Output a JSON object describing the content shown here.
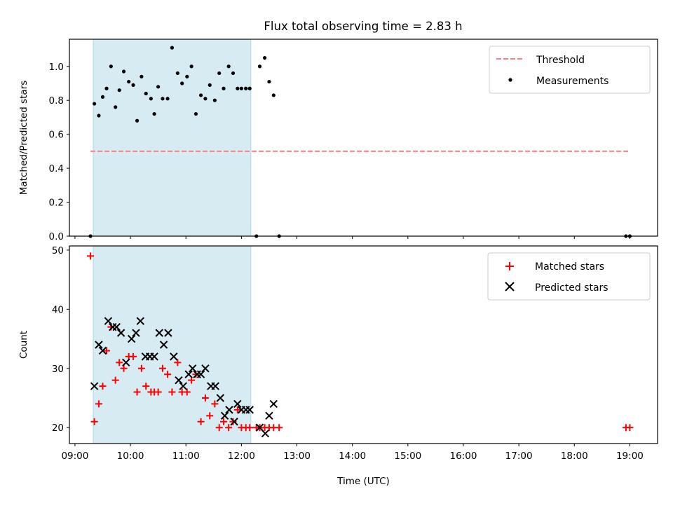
{
  "title": "Flux total observing time = 2.83 h",
  "colors": {
    "shade": "#add8e6",
    "threshold": "#ff7f7f",
    "measurement": "#000000",
    "matched": "#ff0000",
    "predicted": "#000000"
  },
  "chart_data": [
    {
      "type": "scatter",
      "name": "ratio",
      "ylabel": "Matched/Predicted stars",
      "ylim": [
        0,
        1.16
      ],
      "yticks": [
        0.0,
        0.2,
        0.4,
        0.6,
        0.8,
        1.0
      ],
      "ytick_labels": [
        "0.0",
        "0.2",
        "0.4",
        "0.6",
        "0.8",
        "1.0"
      ],
      "xlim": [
        8.9,
        19.5
      ],
      "shaded_interval": [
        9.33,
        12.17
      ],
      "threshold": {
        "label": "Threshold",
        "value": 0.5,
        "x_range": [
          9.28,
          18.97
        ]
      },
      "measurements": {
        "label": "Measurements",
        "x": [
          9.28,
          9.35,
          9.43,
          9.5,
          9.57,
          9.65,
          9.73,
          9.8,
          9.88,
          9.97,
          10.05,
          10.12,
          10.2,
          10.28,
          10.37,
          10.43,
          10.5,
          10.58,
          10.67,
          10.75,
          10.85,
          10.93,
          11.02,
          11.1,
          11.18,
          11.27,
          11.35,
          11.43,
          11.52,
          11.6,
          11.68,
          11.77,
          11.85,
          11.93,
          12.0,
          12.08,
          12.15,
          12.27,
          12.33,
          12.42,
          12.5,
          12.58,
          12.68,
          18.93,
          19.0
        ],
        "y": [
          0.0,
          0.78,
          0.71,
          0.82,
          0.87,
          1.0,
          0.76,
          0.86,
          0.97,
          0.91,
          0.89,
          0.68,
          0.94,
          0.84,
          0.81,
          0.72,
          0.88,
          0.81,
          0.81,
          1.11,
          0.96,
          0.9,
          0.94,
          1.0,
          0.72,
          0.83,
          0.81,
          0.89,
          0.8,
          0.96,
          0.87,
          1.0,
          0.96,
          0.87,
          0.87,
          0.87,
          0.87,
          0.0,
          1.0,
          1.05,
          0.91,
          0.83,
          0.0,
          0.0,
          0.0
        ]
      }
    },
    {
      "type": "scatter",
      "name": "counts",
      "ylabel": "Count",
      "xlabel": "Time (UTC)",
      "ylim": [
        17.3,
        50.7
      ],
      "yticks": [
        20,
        30,
        40,
        50
      ],
      "ytick_labels": [
        "20",
        "30",
        "40",
        "50"
      ],
      "xlim": [
        8.9,
        19.5
      ],
      "xticks": [
        9,
        10,
        11,
        12,
        13,
        14,
        15,
        16,
        17,
        18,
        19
      ],
      "xtick_labels": [
        "09:00",
        "10:00",
        "11:00",
        "12:00",
        "13:00",
        "14:00",
        "15:00",
        "16:00",
        "17:00",
        "18:00",
        "19:00"
      ],
      "shaded_interval": [
        9.33,
        12.17
      ],
      "series": [
        {
          "name": "Matched stars",
          "marker": "plus",
          "x": [
            9.28,
            9.35,
            9.43,
            9.5,
            9.57,
            9.65,
            9.73,
            9.8,
            9.88,
            9.97,
            10.05,
            10.12,
            10.2,
            10.28,
            10.37,
            10.43,
            10.5,
            10.58,
            10.67,
            10.75,
            10.85,
            10.93,
            11.02,
            11.1,
            11.18,
            11.27,
            11.35,
            11.43,
            11.52,
            11.6,
            11.68,
            11.77,
            11.85,
            11.93,
            12.0,
            12.08,
            12.15,
            12.27,
            12.33,
            12.42,
            12.5,
            12.58,
            12.68,
            18.93,
            19.0
          ],
          "y": [
            49,
            21,
            24,
            27,
            33,
            37,
            28,
            31,
            30,
            32,
            32,
            26,
            30,
            27,
            26,
            26,
            26,
            30,
            29,
            26,
            31,
            26,
            26,
            28,
            29,
            21,
            25,
            22,
            24,
            20,
            21,
            20,
            21,
            23,
            20,
            20,
            20,
            20,
            20,
            20,
            20,
            20,
            20,
            20,
            20
          ]
        },
        {
          "name": "Predicted stars",
          "marker": "x",
          "x": [
            9.35,
            9.43,
            9.5,
            9.6,
            9.68,
            9.75,
            9.83,
            9.92,
            10.02,
            10.1,
            10.18,
            10.27,
            10.35,
            10.43,
            10.52,
            10.6,
            10.68,
            10.78,
            10.87,
            10.95,
            11.05,
            11.12,
            11.2,
            11.27,
            11.35,
            11.45,
            11.53,
            11.62,
            11.7,
            11.78,
            11.87,
            11.93,
            12.0,
            12.08,
            12.15,
            12.33,
            12.43,
            12.5,
            12.58
          ],
          "y": [
            27,
            34,
            33,
            38,
            37,
            37,
            36,
            31,
            35,
            36,
            38,
            32,
            32,
            32,
            36,
            34,
            36,
            32,
            28,
            27,
            29,
            30,
            29,
            29,
            30,
            27,
            27,
            25,
            22,
            23,
            21,
            24,
            23,
            23,
            23,
            20,
            19,
            22,
            24
          ]
        }
      ]
    }
  ]
}
